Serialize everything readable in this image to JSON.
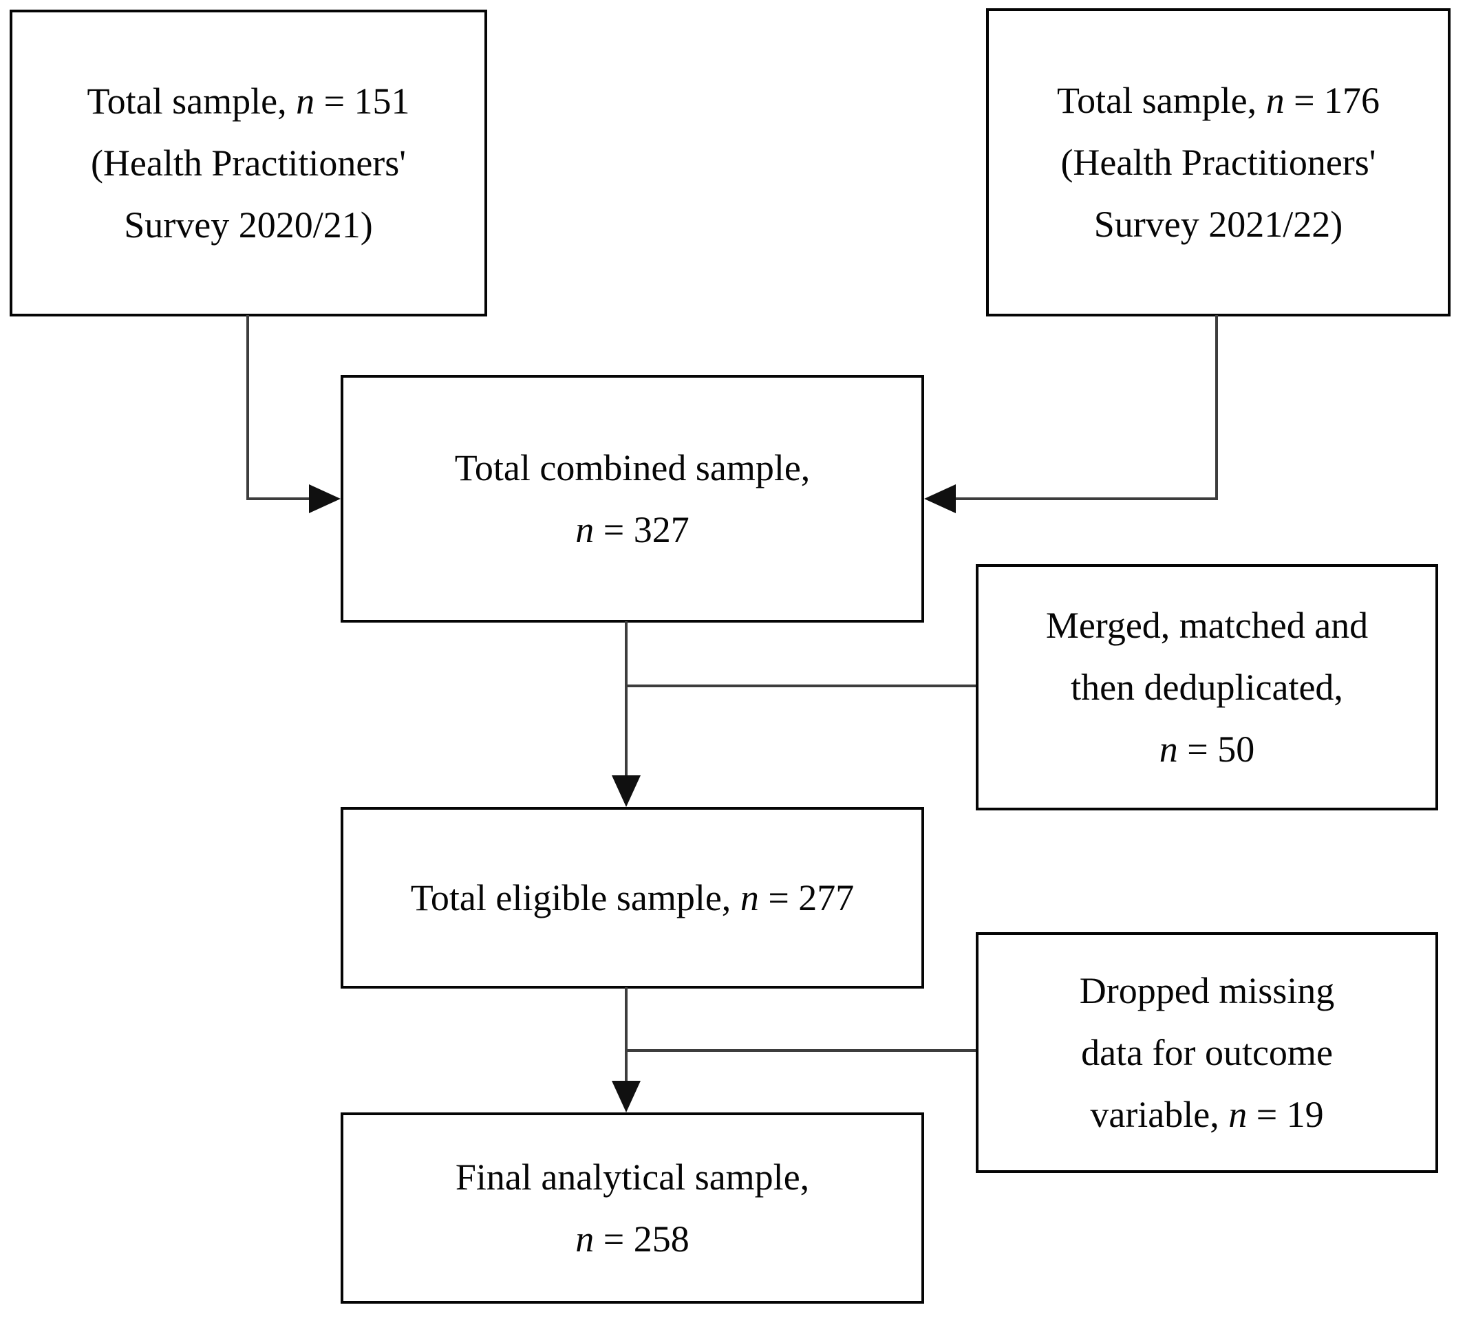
{
  "figure": {
    "background_color": "#ffffff",
    "box_border_color": "#050505",
    "connector_color": "#3d3d3d",
    "arrow_color": "#101010"
  },
  "boxes": {
    "sample_2020": {
      "line1_text": "Total sample, ",
      "line1_var": "n",
      "line1_rest": " = 151",
      "line2": "(Health Practitioners'",
      "line3": "Survey 2020/21)"
    },
    "sample_2021": {
      "line1_text": "Total sample, ",
      "line1_var": "n",
      "line1_rest": " = 176",
      "line2": "(Health Practitioners'",
      "line3": "Survey 2021/22)"
    },
    "combined": {
      "line1": "Total combined sample,",
      "line2_var": "n",
      "line2_rest": " = 327"
    },
    "merged": {
      "line1": "Merged, matched and",
      "line2": "then deduplicated,",
      "line3_var": "n",
      "line3_rest": " = 50"
    },
    "eligible": {
      "line1_text": "Total eligible sample, ",
      "line1_var": "n",
      "line1_rest": " = 277"
    },
    "dropped": {
      "line1": "Dropped missing",
      "line2": "data for outcome",
      "line3_text": "variable, ",
      "line3_var": "n",
      "line3_rest": " = 19"
    },
    "final": {
      "line1": "Final analytical sample,",
      "line2_var": "n",
      "line2_rest": " = 258"
    }
  }
}
